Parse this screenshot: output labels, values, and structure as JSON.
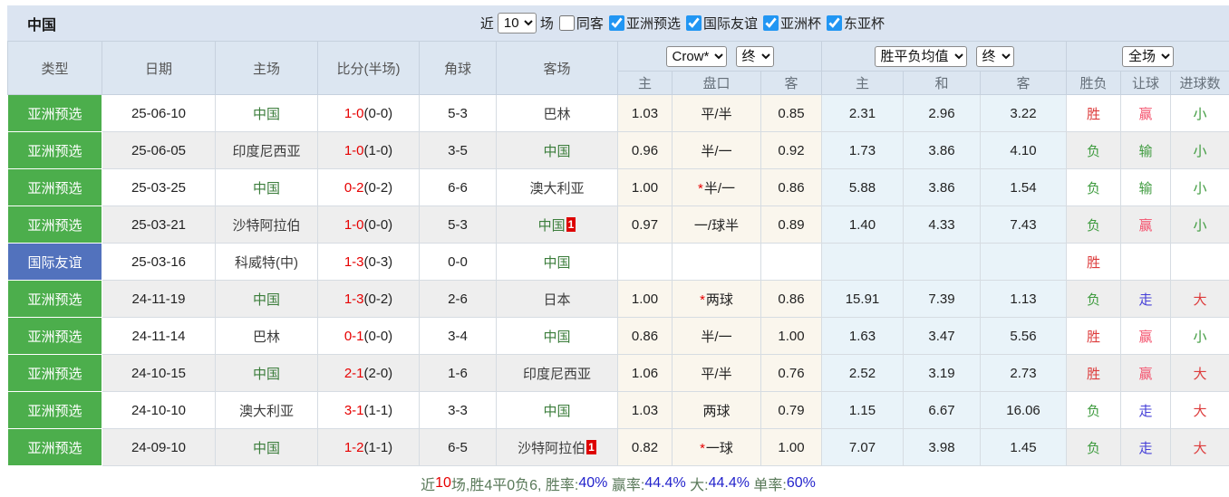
{
  "title": "中国",
  "filters": {
    "near_label": "近",
    "match_count": "10",
    "games_label": "场",
    "same_away_label": "同客",
    "same_away_checked": false,
    "competitions": [
      "亚洲预选",
      "国际友谊",
      "亚洲杯",
      "东亚杯"
    ],
    "competitions_checked": [
      true,
      true,
      true,
      true
    ]
  },
  "header": {
    "main": [
      "类型",
      "日期",
      "主场",
      "比分(半场)",
      "角球",
      "客场"
    ],
    "odds_company_select": "Crow*",
    "odds_time_select": "终",
    "avg_select": "胜平负均值",
    "avg_time_select": "终",
    "scope_select": "全场",
    "sub": [
      "主",
      "盘口",
      "客",
      "主",
      "和",
      "客",
      "胜负",
      "让球",
      "进球数"
    ]
  },
  "rows": [
    {
      "type": "亚洲预选",
      "type_color": "green",
      "date": "25-06-10",
      "home": "中国",
      "home_is_china": true,
      "home_badge": "",
      "ft": "1-0",
      "ht": "(0-0)",
      "corner": "5-3",
      "away": "巴林",
      "away_is_china": false,
      "away_badge": "",
      "odds": [
        "1.03",
        "平/半",
        "0.85"
      ],
      "handicap_star": false,
      "avg": [
        "2.31",
        "2.96",
        "3.22"
      ],
      "results": [
        {
          "t": "胜",
          "c": "red"
        },
        {
          "t": "赢",
          "c": "pink"
        },
        {
          "t": "小",
          "c": "green"
        }
      ]
    },
    {
      "type": "亚洲预选",
      "type_color": "green",
      "date": "25-06-05",
      "home": "印度尼西亚",
      "home_is_china": false,
      "home_badge": "",
      "ft": "1-0",
      "ht": "(1-0)",
      "corner": "3-5",
      "away": "中国",
      "away_is_china": true,
      "away_badge": "",
      "odds": [
        "0.96",
        "半/一",
        "0.92"
      ],
      "handicap_star": false,
      "avg": [
        "1.73",
        "3.86",
        "4.10"
      ],
      "results": [
        {
          "t": "负",
          "c": "green"
        },
        {
          "t": "输",
          "c": "green"
        },
        {
          "t": "小",
          "c": "green"
        }
      ]
    },
    {
      "type": "亚洲预选",
      "type_color": "green",
      "date": "25-03-25",
      "home": "中国",
      "home_is_china": true,
      "home_badge": "",
      "ft": "0-2",
      "ht": "(0-2)",
      "corner": "6-6",
      "away": "澳大利亚",
      "away_is_china": false,
      "away_badge": "",
      "odds": [
        "1.00",
        "半/一",
        "0.86"
      ],
      "handicap_star": true,
      "avg": [
        "5.88",
        "3.86",
        "1.54"
      ],
      "results": [
        {
          "t": "负",
          "c": "green"
        },
        {
          "t": "输",
          "c": "green"
        },
        {
          "t": "小",
          "c": "green"
        }
      ]
    },
    {
      "type": "亚洲预选",
      "type_color": "green",
      "date": "25-03-21",
      "home": "沙特阿拉伯",
      "home_is_china": false,
      "home_badge": "",
      "ft": "1-0",
      "ht": "(0-0)",
      "corner": "5-3",
      "away": "中国",
      "away_is_china": true,
      "away_badge": "1",
      "odds": [
        "0.97",
        "一/球半",
        "0.89"
      ],
      "handicap_star": false,
      "avg": [
        "1.40",
        "4.33",
        "7.43"
      ],
      "results": [
        {
          "t": "负",
          "c": "green"
        },
        {
          "t": "赢",
          "c": "pink"
        },
        {
          "t": "小",
          "c": "green"
        }
      ]
    },
    {
      "type": "国际友谊",
      "type_color": "blue",
      "date": "25-03-16",
      "home": "科威特(中)",
      "home_is_china": false,
      "home_badge": "",
      "ft": "1-3",
      "ht": "(0-3)",
      "corner": "0-0",
      "away": "中国",
      "away_is_china": true,
      "away_badge": "",
      "odds": [
        "",
        "",
        ""
      ],
      "handicap_star": false,
      "avg": [
        "",
        "",
        ""
      ],
      "results": [
        {
          "t": "胜",
          "c": "red"
        },
        {
          "t": "",
          "c": ""
        },
        {
          "t": "",
          "c": ""
        }
      ]
    },
    {
      "type": "亚洲预选",
      "type_color": "green",
      "date": "24-11-19",
      "home": "中国",
      "home_is_china": true,
      "home_badge": "",
      "ft": "1-3",
      "ht": "(0-2)",
      "corner": "2-6",
      "away": "日本",
      "away_is_china": false,
      "away_badge": "",
      "odds": [
        "1.00",
        "两球",
        "0.86"
      ],
      "handicap_star": true,
      "avg": [
        "15.91",
        "7.39",
        "1.13"
      ],
      "results": [
        {
          "t": "负",
          "c": "green"
        },
        {
          "t": "走",
          "c": "blue"
        },
        {
          "t": "大",
          "c": "red"
        }
      ]
    },
    {
      "type": "亚洲预选",
      "type_color": "green",
      "date": "24-11-14",
      "home": "巴林",
      "home_is_china": false,
      "home_badge": "",
      "ft": "0-1",
      "ht": "(0-0)",
      "corner": "3-4",
      "away": "中国",
      "away_is_china": true,
      "away_badge": "",
      "odds": [
        "0.86",
        "半/一",
        "1.00"
      ],
      "handicap_star": false,
      "avg": [
        "1.63",
        "3.47",
        "5.56"
      ],
      "results": [
        {
          "t": "胜",
          "c": "red"
        },
        {
          "t": "赢",
          "c": "pink"
        },
        {
          "t": "小",
          "c": "green"
        }
      ]
    },
    {
      "type": "亚洲预选",
      "type_color": "green",
      "date": "24-10-15",
      "home": "中国",
      "home_is_china": true,
      "home_badge": "",
      "ft": "2-1",
      "ht": "(2-0)",
      "corner": "1-6",
      "away": "印度尼西亚",
      "away_is_china": false,
      "away_badge": "",
      "odds": [
        "1.06",
        "平/半",
        "0.76"
      ],
      "handicap_star": false,
      "avg": [
        "2.52",
        "3.19",
        "2.73"
      ],
      "results": [
        {
          "t": "胜",
          "c": "red"
        },
        {
          "t": "赢",
          "c": "pink"
        },
        {
          "t": "大",
          "c": "red"
        }
      ]
    },
    {
      "type": "亚洲预选",
      "type_color": "green",
      "date": "24-10-10",
      "home": "澳大利亚",
      "home_is_china": false,
      "home_badge": "",
      "ft": "3-1",
      "ht": "(1-1)",
      "corner": "3-3",
      "away": "中国",
      "away_is_china": true,
      "away_badge": "",
      "odds": [
        "1.03",
        "两球",
        "0.79"
      ],
      "handicap_star": false,
      "avg": [
        "1.15",
        "6.67",
        "16.06"
      ],
      "results": [
        {
          "t": "负",
          "c": "green"
        },
        {
          "t": "走",
          "c": "blue"
        },
        {
          "t": "大",
          "c": "red"
        }
      ]
    },
    {
      "type": "亚洲预选",
      "type_color": "green",
      "date": "24-09-10",
      "home": "中国",
      "home_is_china": true,
      "home_badge": "",
      "ft": "1-2",
      "ht": "(1-1)",
      "corner": "6-5",
      "away": "沙特阿拉伯",
      "away_is_china": false,
      "away_badge": "1",
      "odds": [
        "0.82",
        "一球",
        "1.00"
      ],
      "handicap_star": true,
      "avg": [
        "7.07",
        "3.98",
        "1.45"
      ],
      "results": [
        {
          "t": "负",
          "c": "green"
        },
        {
          "t": "走",
          "c": "blue"
        },
        {
          "t": "大",
          "c": "red"
        }
      ]
    }
  ],
  "footer": {
    "parts": [
      {
        "t": "近",
        "c": "label"
      },
      {
        "t": "10",
        "c": "red"
      },
      {
        "t": "场,胜4平0负6, 胜率:",
        "c": "label"
      },
      {
        "t": "40%",
        "c": "blue"
      },
      {
        "t": " 赢率:",
        "c": "label"
      },
      {
        "t": "44.4%",
        "c": "blue"
      },
      {
        "t": " 大:",
        "c": "label"
      },
      {
        "t": "44.4%",
        "c": "blue"
      },
      {
        "t": " 单率:",
        "c": "label"
      },
      {
        "t": "60%",
        "c": "blue"
      }
    ]
  },
  "colors": {
    "title_bar_bg": "#dbe4f1",
    "header_bg": "#dce6f1",
    "badge_green": "#4cae4c",
    "badge_blue": "#5272bd",
    "china_team_green": "#3b7d3b",
    "score_red": "#e60000",
    "result_red": "#dd3c3c",
    "result_pink": "#f4516c",
    "result_green": "#3f9b3f",
    "result_blue": "#4640d8",
    "stat_value_blue": "#2323cc",
    "odds_col_bg": "#faf6ed",
    "avg_col_bg": "#e9f3f9",
    "alt_row_bg": "#eeeeee",
    "checkbox_blue": "#2196f3"
  }
}
